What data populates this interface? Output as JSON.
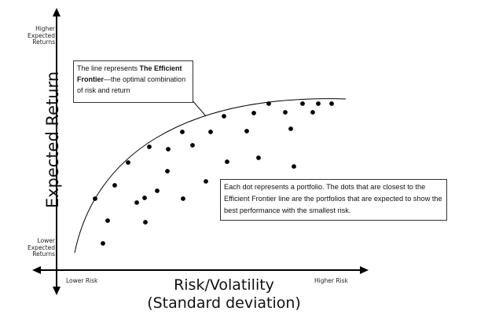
{
  "y_axis": {
    "title": "Expected Return",
    "top_label": "Higher\nExpected\nReturns",
    "bottom_label": "Lower\nExpected\nReturns"
  },
  "x_axis": {
    "title_line1": "Risk/Volatility",
    "title_line2": "(Standard deviation)",
    "left_label": "Lower Risk",
    "right_label": "Higher Risk"
  },
  "frontier_callout": {
    "prefix": "The line represents ",
    "bold": "The Efficient Frontier",
    "suffix": "—the optimal combination of risk and return"
  },
  "dots_callout": {
    "text": "Each dot represents a portfolio. The dots that are closest to the Efficient Frontier line are the portfolios that are expected to show the best performance with the smallest risk."
  },
  "colors": {
    "ink": "#000000",
    "box_border": "#333333"
  }
}
